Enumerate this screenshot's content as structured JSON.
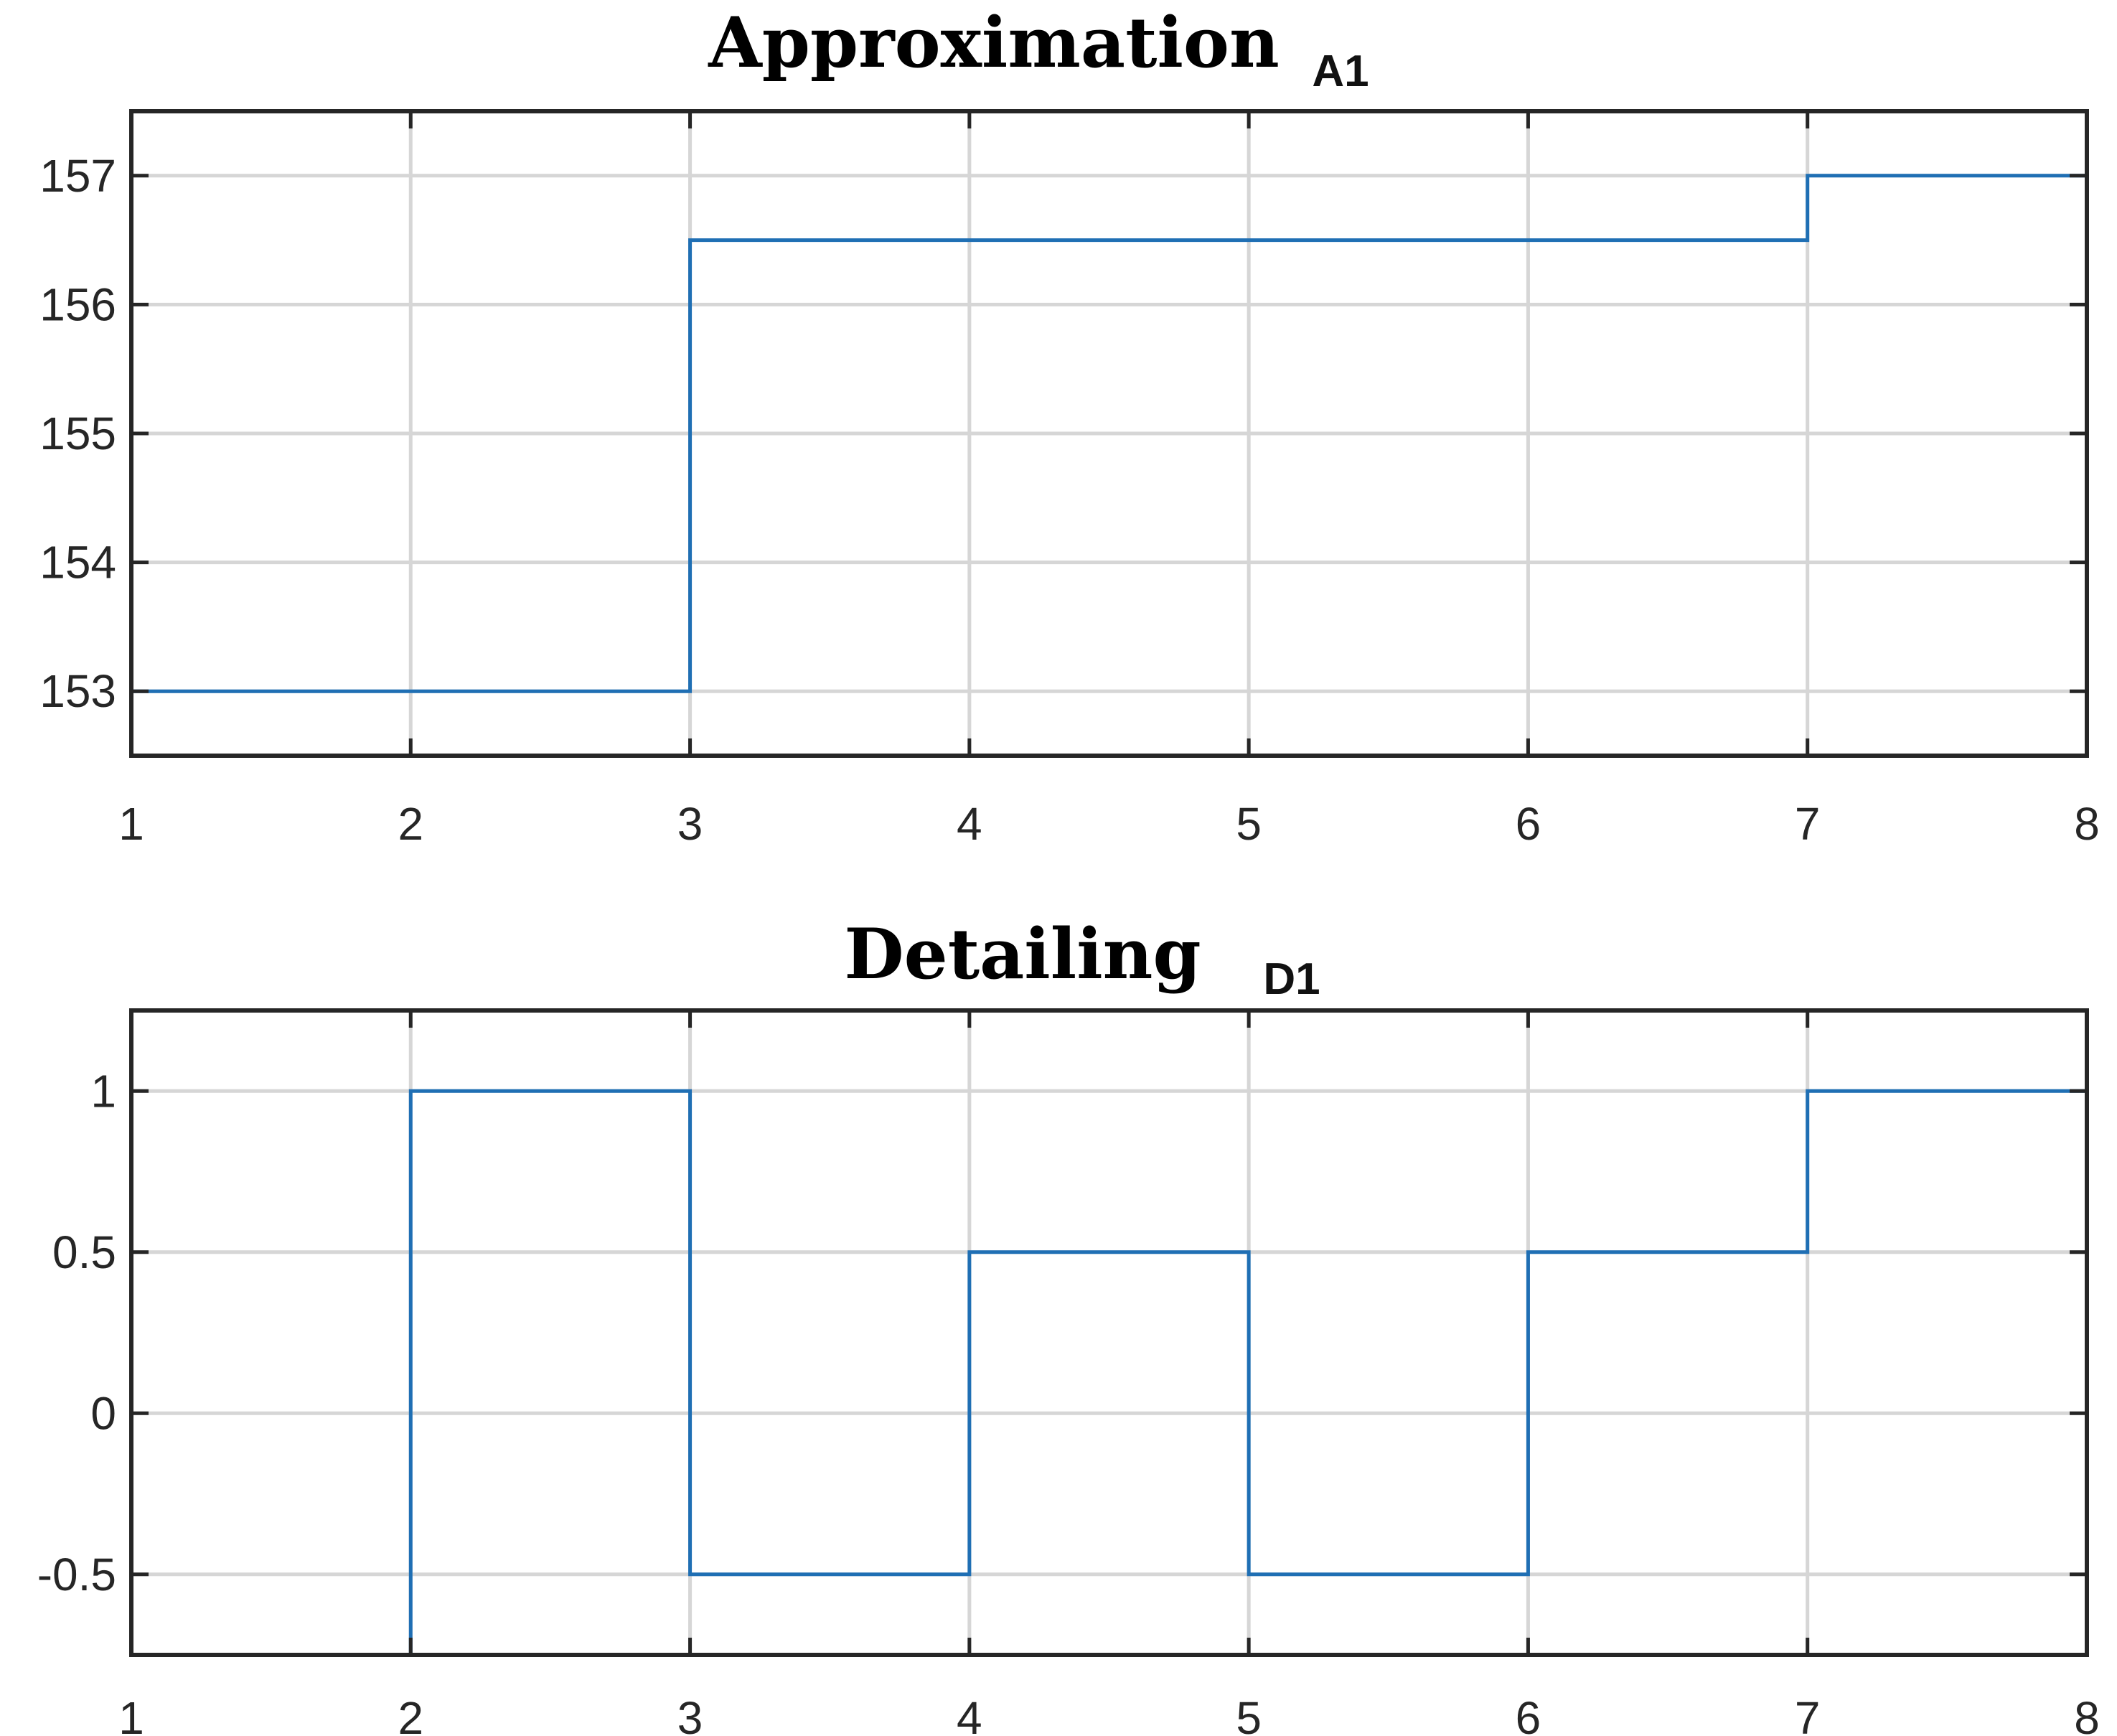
{
  "chart_data": [
    {
      "type": "line",
      "step": "post",
      "title": "Approximation",
      "subtitle": "A1",
      "xlabel": "",
      "ylabel": "",
      "xlim": [
        1,
        8
      ],
      "ylim": [
        152.5,
        157.5
      ],
      "x_ticks": [
        1,
        2,
        3,
        4,
        5,
        6,
        7,
        8
      ],
      "y_ticks": [
        153,
        154,
        155,
        156,
        157
      ],
      "grid": true,
      "series": [
        {
          "x": [
            1,
            2,
            3,
            4,
            5,
            6,
            7,
            8
          ],
          "values": [
            153,
            153,
            156.5,
            156.5,
            156.5,
            156.5,
            157,
            157
          ]
        }
      ]
    },
    {
      "type": "line",
      "step": "post",
      "title": "Detailing",
      "subtitle": "D1",
      "xlabel": "",
      "ylabel": "",
      "xlim": [
        1,
        8
      ],
      "ylim": [
        -0.75,
        1.25
      ],
      "x_ticks": [
        1,
        2,
        3,
        4,
        5,
        6,
        7,
        8
      ],
      "y_ticks": [
        -0.5,
        0,
        0.5,
        1
      ],
      "grid": true,
      "series": [
        {
          "x": [
            1,
            2,
            3,
            4,
            5,
            6,
            7,
            8
          ],
          "values": [
            -1,
            1,
            -0.5,
            0.5,
            -0.5,
            0.5,
            1,
            -1
          ]
        }
      ]
    }
  ],
  "colors": {
    "line": "#1f6fb4",
    "grid": "#d6d6d6",
    "axis": "#262626"
  }
}
